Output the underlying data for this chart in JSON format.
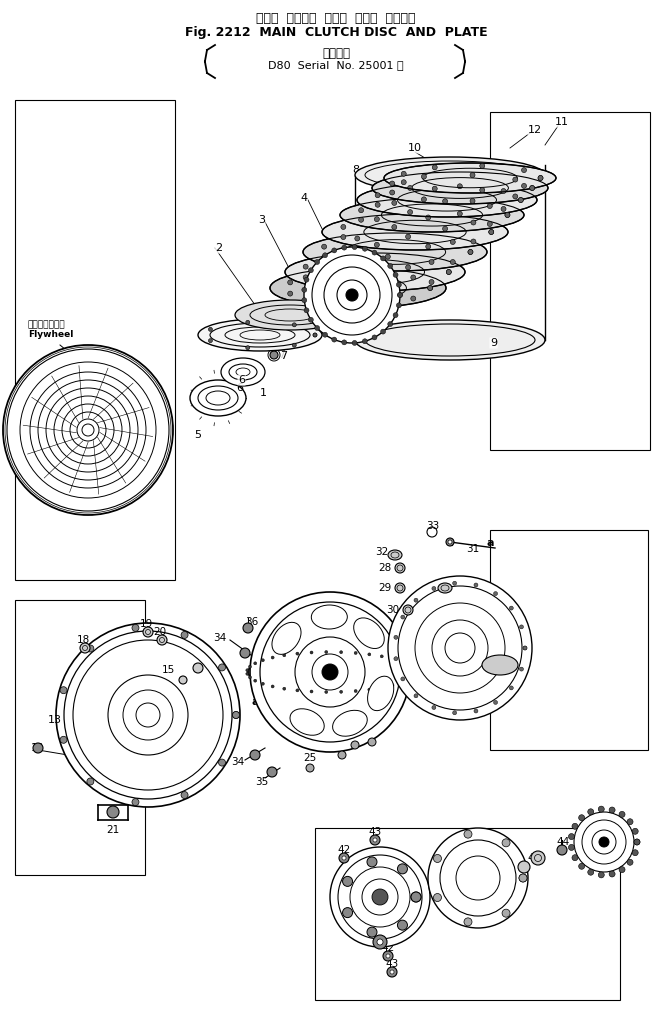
{
  "title_jp": "メイン  クラッチ  デスク  および  プレート",
  "title_en": "Fig. 2212  MAIN  CLUTCH DISC  AND  PLATE",
  "subtitle_jp": "適用号機",
  "subtitle_en": "D80  Serial  No. 25001 ～",
  "flywheel_label_jp": "フライホイール",
  "flywheel_label_en": "Flywheel",
  "bg_color": "#ffffff",
  "line_color": "#000000"
}
